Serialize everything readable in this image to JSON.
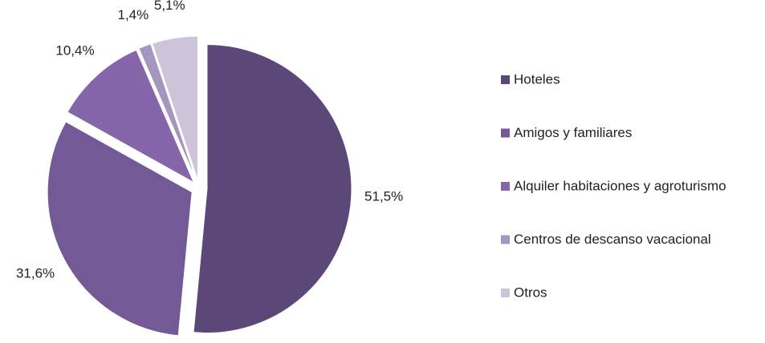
{
  "chart_data": {
    "type": "pie",
    "categories": [
      "Hoteles",
      "Amigos y familiares",
      "Alquiler habitaciones y agroturismo",
      "Centros de descanso vacacional",
      "Otros"
    ],
    "values": [
      51.5,
      31.6,
      10.4,
      1.4,
      5.1
    ],
    "value_labels": [
      "51,5%",
      "31,6%",
      "10,4%",
      "1,4%",
      "5,1%"
    ],
    "colors": [
      "#5b4778",
      "#735a96",
      "#8566ab",
      "#a596c0",
      "#cdc4da"
    ],
    "legend": "right"
  }
}
